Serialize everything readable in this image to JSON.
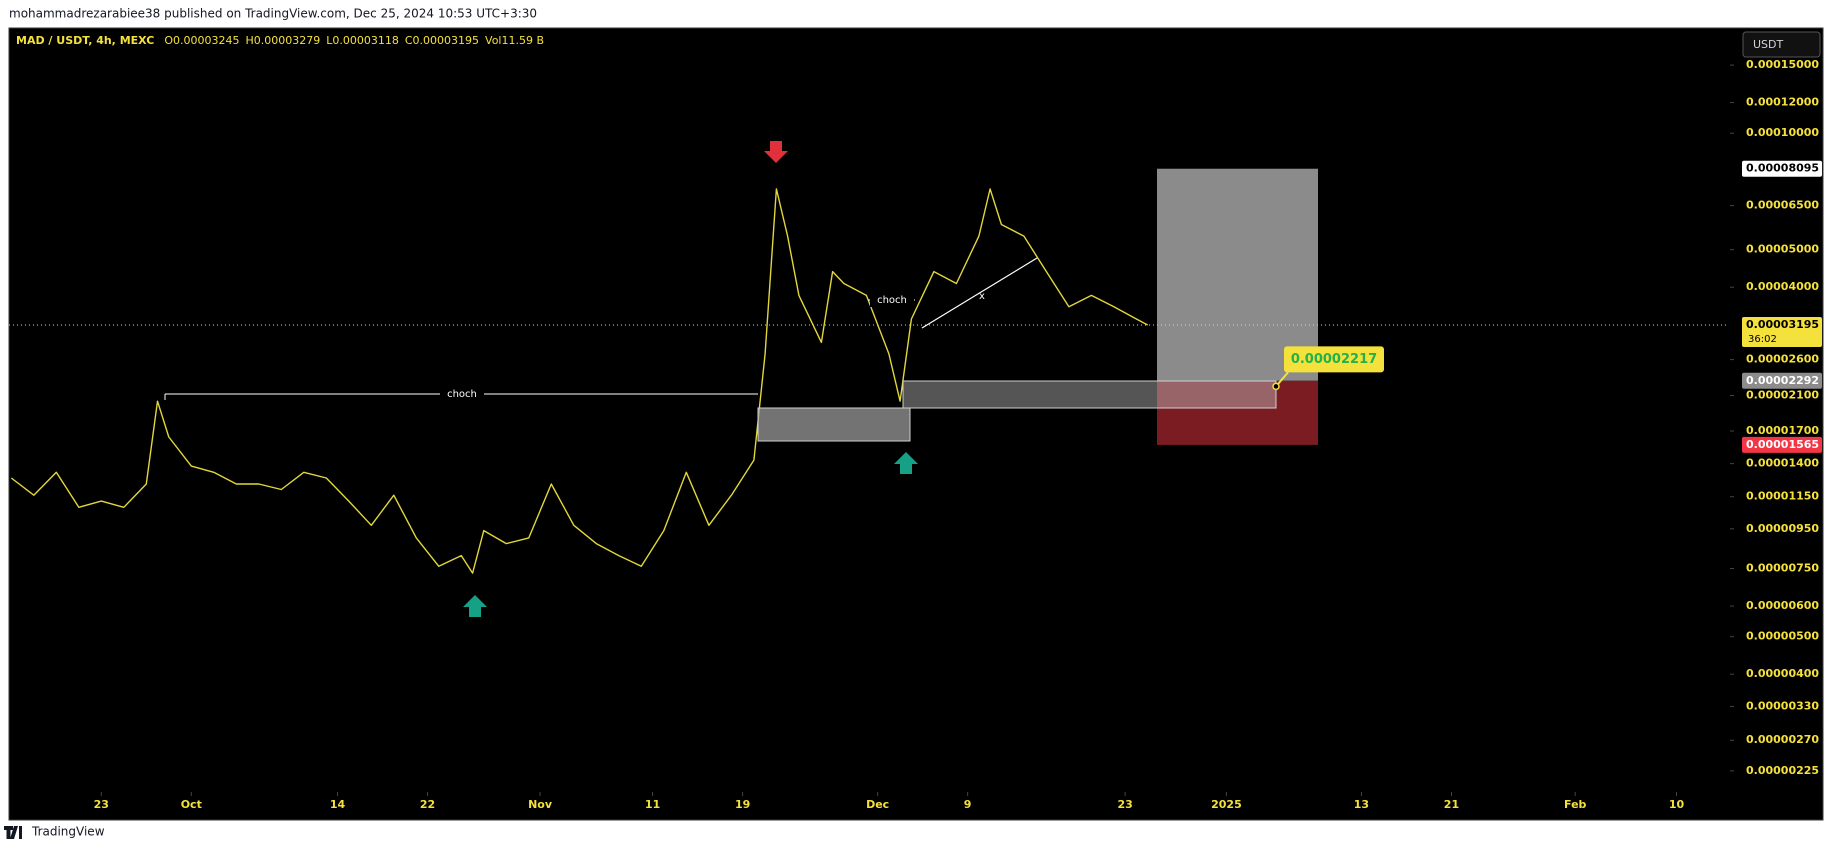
{
  "header": {
    "text": "mohammadrezarabiee38 published on TradingView.com, Dec 25, 2024 10:53 UTC+3:30"
  },
  "legend": {
    "symbol": "MAD / USDT, 4h, MEXC",
    "fields": [
      "O0.00003245",
      "H0.00003279",
      "L0.00003118",
      "C0.00003195",
      "Vol11.59 B"
    ]
  },
  "currency_button": "USDT",
  "footer": "TradingView",
  "chart_data": {
    "type": "line",
    "x": [
      -8,
      -6,
      -4,
      -2,
      0,
      2,
      4,
      5,
      6,
      8,
      10,
      12,
      14,
      16,
      18,
      20,
      22,
      24,
      26,
      28,
      30,
      32,
      33,
      34,
      36,
      38,
      40,
      42,
      44,
      46,
      48,
      50,
      52,
      54,
      56,
      58,
      59,
      60,
      61,
      62,
      64,
      65,
      66,
      68,
      70,
      71,
      72,
      74,
      76,
      78,
      79,
      80,
      82,
      84,
      86,
      88,
      90,
      92,
      93
    ],
    "values": [
      1.285e-05,
      1.16e-05,
      1.33e-05,
      1.08e-05,
      1.12e-05,
      1.08e-05,
      1.24e-05,
      2.03e-05,
      1.64e-05,
      1.38e-05,
      1.33e-05,
      1.24e-05,
      1.24e-05,
      1.2e-05,
      1.33e-05,
      1.285e-05,
      1.12e-05,
      9.7e-06,
      1.16e-05,
      9e-06,
      7.6e-06,
      8.1e-06,
      7.3e-06,
      9.4e-06,
      8.7e-06,
      9e-06,
      1.24e-05,
      9.7e-06,
      8.7e-06,
      8.1e-06,
      7.6e-06,
      9.4e-06,
      1.33e-05,
      9.7e-06,
      1.16e-05,
      1.43e-05,
      2.69e-05,
      7.18e-05,
      5.42e-05,
      3.81e-05,
      2.88e-05,
      4.39e-05,
      4.09e-05,
      3.81e-05,
      2.69e-05,
      2.03e-05,
      3.31e-05,
      4.39e-05,
      4.09e-05,
      5.42e-05,
      7.18e-05,
      5.81e-05,
      5.42e-05,
      4.39e-05,
      3.56e-05,
      3.81e-05,
      3.56e-05,
      3.31e-05,
      3.195e-05
    ],
    "color": "#e2d73b",
    "xlim": [
      -8.2,
      144.4
    ],
    "xticks": [
      {
        "value": 0,
        "label": "23"
      },
      {
        "value": 8,
        "label": "Oct"
      },
      {
        "value": 21,
        "label": "14"
      },
      {
        "value": 29,
        "label": "22"
      },
      {
        "value": 39,
        "label": "Nov"
      },
      {
        "value": 49,
        "label": "11"
      },
      {
        "value": 57,
        "label": "19"
      },
      {
        "value": 69,
        "label": "Dec"
      },
      {
        "value": 77,
        "label": "9"
      },
      {
        "value": 91,
        "label": "23"
      },
      {
        "value": 100,
        "label": "2025"
      },
      {
        "value": 112,
        "label": "13"
      },
      {
        "value": 120,
        "label": "21"
      },
      {
        "value": 131,
        "label": "Feb"
      },
      {
        "value": 140,
        "label": "10"
      }
    ],
    "ylim": [
      1.7e-06,
      0.000187
    ],
    "log_scale": true,
    "grid": false,
    "yticks": [
      {
        "value": 0.00015,
        "label": "0.00015000"
      },
      {
        "value": 0.00012,
        "label": "0.00012000"
      },
      {
        "value": 0.0001,
        "label": "0.00010000"
      },
      {
        "value": 6.5e-05,
        "label": "0.00006500"
      },
      {
        "value": 5e-05,
        "label": "0.00005000"
      },
      {
        "value": 4e-05,
        "label": "0.00004000"
      },
      {
        "value": 2.6e-05,
        "label": "0.00002600"
      },
      {
        "value": 2.1e-05,
        "label": "0.00002100"
      },
      {
        "value": 1.7e-05,
        "label": "0.00001700"
      },
      {
        "value": 1.4e-05,
        "label": "0.00001400"
      },
      {
        "value": 1.15e-05,
        "label": "0.00001150"
      },
      {
        "value": 9.5e-06,
        "label": "0.00000950"
      },
      {
        "value": 7.5e-06,
        "label": "0.00000750"
      },
      {
        "value": 6e-06,
        "label": "0.00000600"
      },
      {
        "value": 5e-06,
        "label": "0.00000500"
      },
      {
        "value": 4e-06,
        "label": "0.00000400"
      },
      {
        "value": 3.3e-06,
        "label": "0.00000330"
      },
      {
        "value": 2.7e-06,
        "label": "0.00000270"
      },
      {
        "value": 2.25e-06,
        "label": "0.00000225"
      }
    ],
    "price_labels": [
      {
        "value": 8.095e-05,
        "label": "0.00008095",
        "color": "#ffffff"
      },
      {
        "value": 3.195e-05,
        "label": "0.00003195",
        "sublabel": "36:02",
        "color": "#f5e13b"
      },
      {
        "value": 2.292e-05,
        "label": "0.00002292",
        "color": "#8c8c8c"
      },
      {
        "value": 1.565e-05,
        "label": "0.00001565",
        "color": "#f23645"
      }
    ],
    "annotations": {
      "choch": [
        "choch",
        "choch"
      ],
      "mark": "x",
      "callout": {
        "value": 2.217e-05,
        "label": "0.00002217"
      }
    }
  }
}
